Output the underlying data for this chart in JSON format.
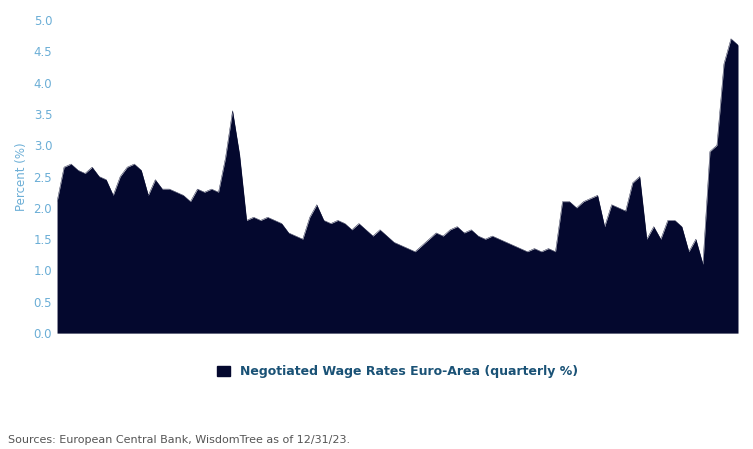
{
  "values": [
    2.1,
    2.65,
    2.7,
    2.6,
    2.55,
    2.65,
    2.5,
    2.45,
    2.2,
    2.5,
    2.65,
    2.7,
    2.6,
    2.2,
    2.45,
    2.3,
    2.3,
    2.25,
    2.2,
    2.1,
    2.3,
    2.25,
    2.3,
    2.25,
    2.8,
    3.55,
    2.85,
    1.8,
    1.85,
    1.8,
    1.85,
    1.8,
    1.75,
    1.6,
    1.55,
    1.5,
    1.85,
    2.05,
    1.8,
    1.75,
    1.8,
    1.75,
    1.65,
    1.75,
    1.65,
    1.55,
    1.65,
    1.55,
    1.45,
    1.4,
    1.35,
    1.3,
    1.4,
    1.5,
    1.6,
    1.55,
    1.65,
    1.7,
    1.6,
    1.65,
    1.55,
    1.5,
    1.55,
    1.5,
    1.45,
    1.4,
    1.35,
    1.3,
    1.35,
    1.3,
    1.35,
    1.3,
    2.1,
    2.1,
    2.0,
    2.1,
    2.15,
    2.2,
    1.7,
    2.05,
    2.0,
    1.95,
    2.4,
    2.5,
    1.5,
    1.7,
    1.5,
    1.8,
    1.8,
    1.7,
    1.3,
    1.5,
    1.1,
    2.9,
    3.0,
    4.3,
    4.7,
    4.6
  ],
  "fill_color": "#04082e",
  "line_color": "#04082e",
  "ylabel": "Percent (%)",
  "ylabel_color": "#6baed6",
  "ytick_color": "#6baed6",
  "ylim": [
    0,
    5
  ],
  "yticks": [
    0,
    0.5,
    1,
    1.5,
    2,
    2.5,
    3,
    3.5,
    4,
    4.5,
    5
  ],
  "legend_label": "Negotiated Wage Rates Euro-Area (quarterly %)",
  "legend_color": "#04082e",
  "legend_text_color": "#1a5276",
  "source_text": "Sources: European Central Bank, WisdomTree as of 12/31/23.",
  "source_color": "#555555",
  "background_color": "#ffffff"
}
